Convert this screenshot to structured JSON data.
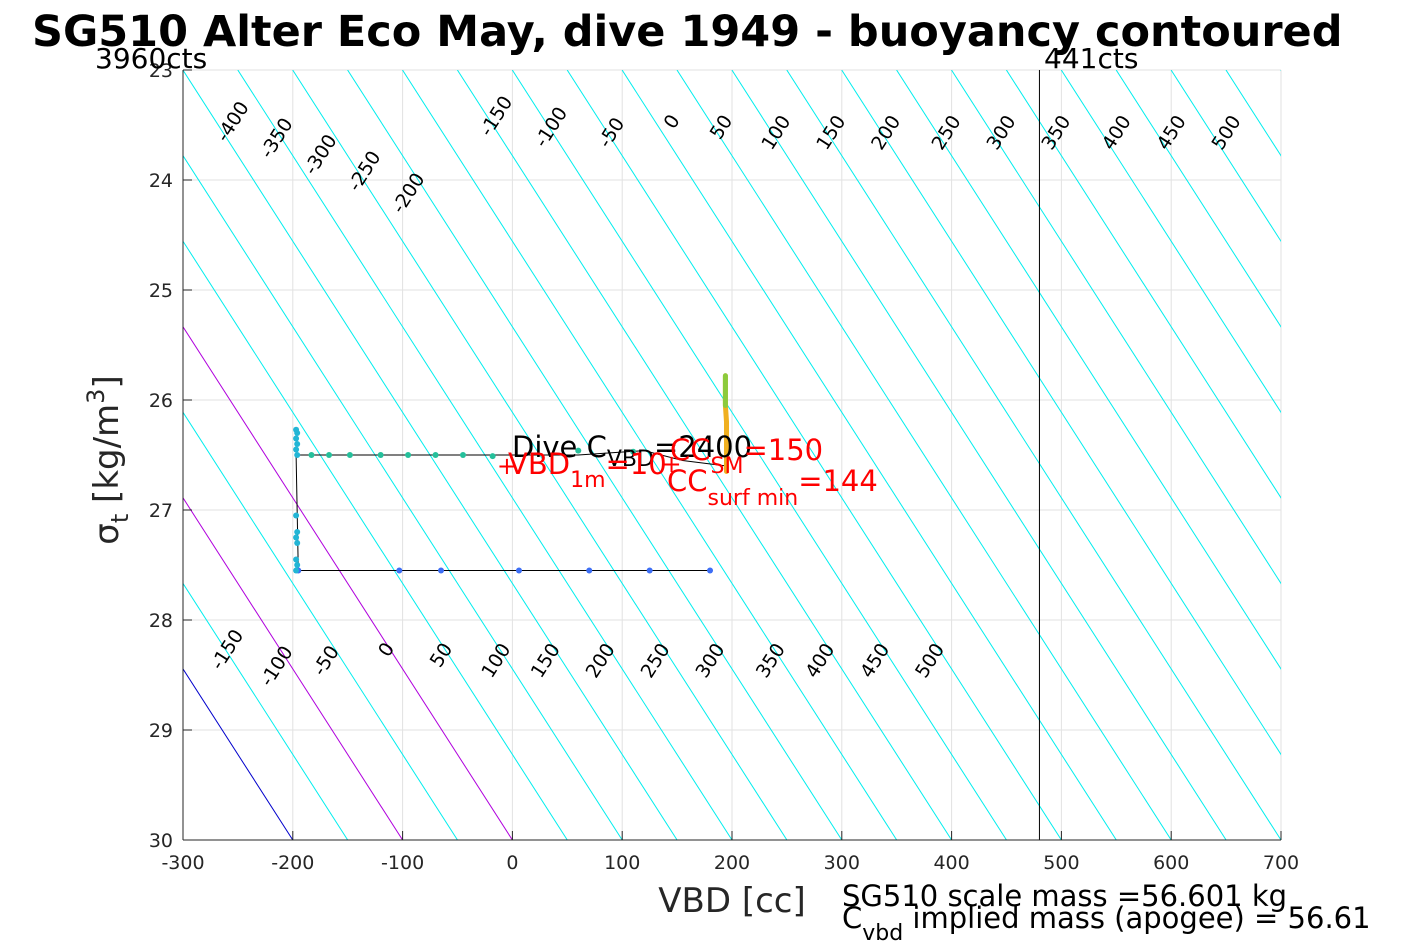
{
  "chart_data": {
    "type": "line",
    "title": "SG510 Alter Eco May, dive 1949 - buoyancy contoured",
    "xlabel": "VBD [cc]",
    "ylabel_main": "σ",
    "ylabel_sub": "t",
    "ylabel_unit": "[kg/m",
    "ylabel_sup": "3",
    "ylabel_close": "]",
    "xlim": [
      -300,
      700
    ],
    "ylim": [
      23,
      30
    ],
    "y_reversed": true,
    "grid": true,
    "x_ticks": [
      {
        "value": -300,
        "label": "-300"
      },
      {
        "value": -200,
        "label": "-200"
      },
      {
        "value": -100,
        "label": "-100"
      },
      {
        "value": 0,
        "label": "0"
      },
      {
        "value": 100,
        "label": "100"
      },
      {
        "value": 200,
        "label": "200"
      },
      {
        "value": 300,
        "label": "300"
      },
      {
        "value": 400,
        "label": "400"
      },
      {
        "value": 500,
        "label": "500"
      },
      {
        "value": 600,
        "label": "600"
      },
      {
        "value": 700,
        "label": "700"
      }
    ],
    "y_ticks": [
      {
        "value": 23,
        "label": "23"
      },
      {
        "value": 24,
        "label": "24"
      },
      {
        "value": 25,
        "label": "25"
      },
      {
        "value": 26,
        "label": "26"
      },
      {
        "value": 27,
        "label": "27"
      },
      {
        "value": 28,
        "label": "28"
      },
      {
        "value": 29,
        "label": "29"
      },
      {
        "value": 30,
        "label": "30"
      }
    ],
    "contours": {
      "levels": [
        -400,
        -350,
        -300,
        -250,
        -200,
        -150,
        -100,
        -50,
        0,
        50,
        100,
        150,
        200,
        250,
        300,
        350,
        400,
        450,
        500
      ],
      "x_at_sigma30": [
        -200,
        -150,
        -100,
        -50,
        0,
        50,
        100,
        150,
        200,
        250,
        300,
        350,
        400,
        450,
        500,
        550,
        600,
        650,
        700,
        750,
        800,
        850,
        900,
        950,
        1000,
        1050,
        1100,
        1150,
        1200
      ],
      "slope_cc_per_sigma": 64.3,
      "default_color": "#00eeee",
      "highlight_lines": [
        {
          "x_at_sigma30": -200,
          "color": "#0000cc"
        },
        {
          "x_at_sigma30": -100,
          "color": "#b000dd"
        },
        {
          "x_at_sigma30": 0,
          "color": "#b000dd"
        }
      ],
      "upper_labels": [
        {
          "text": "-400",
          "x": -250,
          "y": 23.5
        },
        {
          "text": "-350",
          "x": -210,
          "y": 23.65
        },
        {
          "text": "-300",
          "x": -170,
          "y": 23.8
        },
        {
          "text": "-250",
          "x": -130,
          "y": 23.95
        },
        {
          "text": "-200",
          "x": -90,
          "y": 24.15
        },
        {
          "text": "-150",
          "x": -10,
          "y": 23.45
        },
        {
          "text": "-100",
          "x": 40,
          "y": 23.55
        },
        {
          "text": "-50",
          "x": 95,
          "y": 23.6
        },
        {
          "text": "0",
          "x": 150,
          "y": 23.5
        },
        {
          "text": "50",
          "x": 195,
          "y": 23.55
        },
        {
          "text": "100",
          "x": 245,
          "y": 23.6
        },
        {
          "text": "150",
          "x": 295,
          "y": 23.6
        },
        {
          "text": "200",
          "x": 345,
          "y": 23.6
        },
        {
          "text": "250",
          "x": 400,
          "y": 23.6
        },
        {
          "text": "300",
          "x": 450,
          "y": 23.6
        },
        {
          "text": "350",
          "x": 500,
          "y": 23.6
        },
        {
          "text": "400",
          "x": 555,
          "y": 23.6
        },
        {
          "text": "450",
          "x": 605,
          "y": 23.6
        },
        {
          "text": "500",
          "x": 655,
          "y": 23.6
        }
      ],
      "lower_labels": [
        {
          "text": "-150",
          "x": -255,
          "y": 28.3
        },
        {
          "text": "-100",
          "x": -210,
          "y": 28.45
        },
        {
          "text": "-50",
          "x": -165,
          "y": 28.4
        },
        {
          "text": "0",
          "x": -110,
          "y": 28.3
        },
        {
          "text": "50",
          "x": -60,
          "y": 28.35
        },
        {
          "text": "100",
          "x": -10,
          "y": 28.4
        },
        {
          "text": "150",
          "x": 35,
          "y": 28.4
        },
        {
          "text": "200",
          "x": 85,
          "y": 28.4
        },
        {
          "text": "250",
          "x": 135,
          "y": 28.4
        },
        {
          "text": "300",
          "x": 185,
          "y": 28.4
        },
        {
          "text": "350",
          "x": 240,
          "y": 28.4
        },
        {
          "text": "400",
          "x": 285,
          "y": 28.4
        },
        {
          "text": "450",
          "x": 335,
          "y": 28.4
        },
        {
          "text": "500",
          "x": 385,
          "y": 28.4
        }
      ]
    },
    "vertical_line": {
      "x": 480,
      "color": "#000000"
    },
    "series": [
      {
        "name": "descent",
        "color": "#3d6ef5",
        "points": [
          [
            180,
            27.55
          ],
          [
            125,
            27.55
          ],
          [
            70,
            27.55
          ],
          [
            6,
            27.55
          ],
          [
            -65,
            27.55
          ],
          [
            -103,
            27.55
          ],
          [
            -195,
            27.55
          ]
        ]
      },
      {
        "name": "apogee",
        "color": "#22b5d5",
        "points": [
          [
            -197,
            26.27
          ],
          [
            -196,
            26.3
          ],
          [
            -197,
            26.35
          ],
          [
            -196,
            26.4
          ],
          [
            -197,
            26.45
          ],
          [
            -196,
            26.5
          ],
          [
            -197,
            27.05
          ],
          [
            -196,
            27.2
          ],
          [
            -197,
            27.25
          ],
          [
            -196,
            27.3
          ],
          [
            -197,
            27.45
          ],
          [
            -196,
            27.5
          ],
          [
            -197,
            27.55
          ]
        ]
      },
      {
        "name": "climb",
        "color": "#25c09b",
        "points": [
          [
            -183,
            26.5
          ],
          [
            -167,
            26.5
          ],
          [
            -148,
            26.5
          ],
          [
            -120,
            26.5
          ],
          [
            -95,
            26.5
          ],
          [
            -70,
            26.5
          ],
          [
            -45,
            26.5
          ],
          [
            -18,
            26.51
          ],
          [
            60,
            26.46
          ],
          [
            110,
            26.47
          ]
        ]
      },
      {
        "name": "surface",
        "color": "#f0b020",
        "points": [
          [
            195,
            26.65
          ],
          [
            195,
            26.4
          ],
          [
            195,
            26.2
          ],
          [
            194,
            26.05
          ],
          [
            194,
            25.9
          ],
          [
            194,
            25.78
          ]
        ]
      }
    ],
    "outline": {
      "color": "#000000",
      "points": [
        [
          180,
          27.55
        ],
        [
          -195,
          27.55
        ],
        [
          -197,
          26.5
        ],
        [
          60,
          26.5
        ],
        [
          120,
          26.46
        ],
        [
          155,
          26.55
        ],
        [
          195,
          26.6
        ]
      ]
    },
    "annotations": {
      "dive_c_label": "Dive C",
      "dive_c_sub": "VBD",
      "dive_c_value": "=2400",
      "vbd1m_label": "VBD",
      "vbd1m_sub": "1m",
      "vbd1m_value": "=10",
      "ccsm_label": "CC",
      "ccsm_sub": "SM",
      "ccsm_value": "=150",
      "ccsurf_label": "CC",
      "ccsurf_sub": "surf min",
      "ccsurf_value": "=144",
      "markers": [
        {
          "x": -5,
          "y": 26.6,
          "symbol": "+"
        },
        {
          "x": 145,
          "y": 26.58,
          "symbol": "+"
        }
      ],
      "annotation_color": "#ff0000"
    },
    "corner_left": "3960cts",
    "corner_right": "441cts",
    "footer_line1": "SG510 scale mass =56.601 kg",
    "footer_line2_c": "C",
    "footer_line2_sub": "vbd",
    "footer_line2_rest": " implied mass (apogee) = 56.61"
  }
}
